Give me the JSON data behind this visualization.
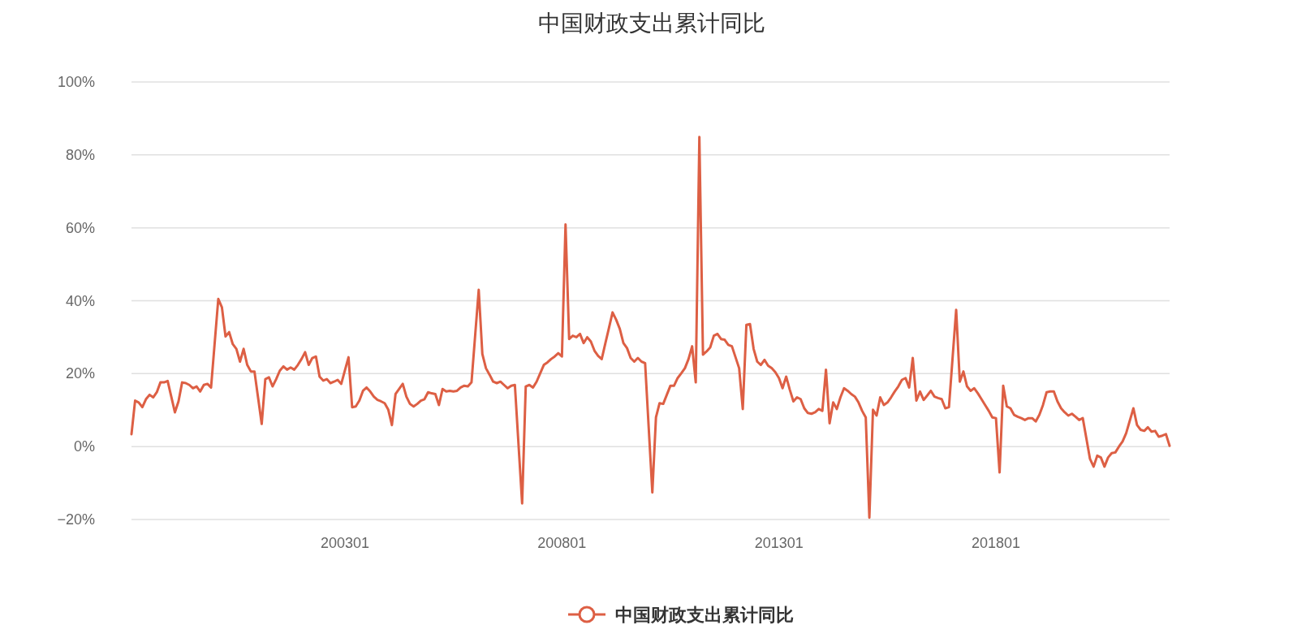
{
  "chart_data": {
    "type": "line",
    "title": "中国财政支出累计同比",
    "categories": [
      null,
      null,
      null,
      null,
      null,
      null,
      null,
      null,
      null,
      null,
      null,
      null,
      null,
      null,
      null,
      null,
      null,
      null,
      null,
      null,
      null,
      null,
      null,
      null,
      null,
      null,
      null,
      null,
      null,
      null,
      null,
      null,
      null,
      null,
      null,
      null,
      null,
      null,
      null,
      null,
      null,
      null,
      null,
      null,
      null,
      null,
      null,
      null,
      null,
      null,
      null,
      null,
      null,
      null,
      null,
      null,
      null,
      null,
      null,
      "200301",
      null,
      null,
      null,
      null,
      null,
      null,
      null,
      null,
      null,
      null,
      null,
      null,
      null,
      null,
      null,
      null,
      null,
      null,
      null,
      null,
      null,
      null,
      null,
      null,
      null,
      null,
      null,
      null,
      null,
      null,
      null,
      null,
      null,
      null,
      null,
      null,
      null,
      null,
      null,
      null,
      null,
      null,
      null,
      null,
      null,
      null,
      null,
      null,
      null,
      null,
      null,
      null,
      null,
      null,
      null,
      null,
      null,
      null,
      null,
      "200801",
      null,
      null,
      null,
      null,
      null,
      null,
      null,
      null,
      null,
      null,
      null,
      null,
      null,
      null,
      null,
      null,
      null,
      null,
      null,
      null,
      null,
      null,
      null,
      null,
      null,
      null,
      null,
      null,
      null,
      null,
      null,
      null,
      null,
      null,
      null,
      null,
      null,
      null,
      null,
      null,
      null,
      null,
      null,
      null,
      null,
      null,
      null,
      null,
      null,
      null,
      null,
      null,
      null,
      null,
      null,
      null,
      null,
      null,
      null,
      "201301",
      null,
      null,
      null,
      null,
      null,
      null,
      null,
      null,
      null,
      null,
      null,
      null,
      null,
      null,
      null,
      null,
      null,
      null,
      null,
      null,
      null,
      null,
      null,
      null,
      null,
      null,
      null,
      null,
      null,
      null,
      null,
      null,
      null,
      null,
      null,
      null,
      null,
      null,
      null,
      null,
      null,
      null,
      null,
      null,
      null,
      null,
      null,
      null,
      null,
      null,
      null,
      null,
      null,
      null,
      null,
      null,
      null,
      null,
      null,
      "201801",
      null,
      null,
      null,
      null,
      null,
      null,
      null,
      null,
      null,
      null,
      null,
      null,
      null,
      null,
      null,
      null,
      null,
      null,
      null,
      null,
      null,
      null,
      null,
      null,
      null,
      null,
      null,
      null,
      null,
      null,
      null,
      null,
      null,
      null,
      null,
      null,
      null,
      null,
      null,
      null,
      null,
      null,
      null,
      null,
      null,
      null,
      null,
      null
    ],
    "series": [
      {
        "name": "中国财政支出累计同比",
        "color": "#dd5f44",
        "values": [
          3.4,
          12.6,
          12.1,
          10.8,
          13,
          14.2,
          13.5,
          14.9,
          17.6,
          17.6,
          18,
          13.7,
          9.4,
          12.4,
          17.6,
          17.4,
          16.9,
          16,
          16.5,
          15.1,
          16.9,
          17.2,
          16.2,
          28.4,
          40.5,
          38.2,
          30.2,
          31.4,
          28.1,
          26.8,
          23.3,
          26.8,
          22.4,
          20.6,
          20.6,
          13.4,
          6.2,
          18.5,
          19,
          16.5,
          18.5,
          20.8,
          22,
          21.1,
          21.7,
          21.1,
          22.4,
          24,
          25.9,
          22.4,
          24.3,
          24.7,
          19.2,
          18.1,
          18.5,
          17.4,
          17.8,
          18.3,
          17.2,
          20.9,
          24.5,
          10.8,
          11,
          12.6,
          15.3,
          16.2,
          15.1,
          13.7,
          12.8,
          12.4,
          11.9,
          10.1,
          5.9,
          14.4,
          15.8,
          17.2,
          13.7,
          11.7,
          11,
          11.7,
          12.6,
          13,
          14.9,
          14.6,
          14.4,
          11.4,
          15.8,
          15.1,
          15.3,
          15.1,
          15.3,
          16.2,
          16.7,
          16.5,
          17.6,
          30.3,
          43,
          25.4,
          21.5,
          19.7,
          17.8,
          17.4,
          17.8,
          16.9,
          16,
          16.7,
          16.9,
          0.6,
          -15.6,
          16.5,
          16.9,
          16.2,
          17.8,
          20.1,
          22.4,
          23.1,
          24,
          24.7,
          25.6,
          24.7,
          60.9,
          29.5,
          30.4,
          30,
          30.9,
          28.4,
          30,
          28.8,
          26.3,
          24.9,
          24,
          28.3,
          32.5,
          36.8,
          34.8,
          32.3,
          28.4,
          27,
          24.3,
          23.3,
          24.3,
          23.3,
          22.9,
          5.1,
          -12.6,
          8,
          11.9,
          11.7,
          14.2,
          16.7,
          16.7,
          18.8,
          20.1,
          21.5,
          24,
          27.5,
          17.6,
          84.9,
          25.2,
          26.1,
          27.2,
          30.4,
          30.9,
          29.5,
          29.3,
          27.9,
          27.5,
          24.5,
          21.5,
          10.3,
          33.4,
          33.6,
          26.8,
          23.3,
          22.4,
          23.8,
          22.2,
          21.5,
          20.4,
          18.8,
          16,
          19.2,
          15.6,
          12.4,
          13.5,
          13,
          10.5,
          9.2,
          9,
          9.4,
          10.3,
          9.8,
          21.1,
          6.4,
          12.1,
          10.3,
          13.5,
          16,
          15.3,
          14.4,
          13.7,
          12.1,
          9.8,
          8,
          -19.5,
          10.1,
          8.5,
          13.5,
          11.4,
          12.1,
          13.5,
          15.1,
          16.5,
          18.3,
          18.8,
          16.2,
          24.3,
          12.6,
          15.1,
          12.8,
          14,
          15.3,
          13.7,
          13.3,
          13,
          10.5,
          10.8,
          24.2,
          37.5,
          17.8,
          20.6,
          16.5,
          15.3,
          16,
          14.6,
          13,
          11.4,
          9.8,
          8,
          7.8,
          -7.1,
          16.7,
          11,
          10.5,
          8.7,
          8.2,
          7.8,
          7.3,
          7.8,
          7.8,
          6.9,
          8.7,
          11.4,
          14.9,
          15.1,
          15.1,
          12.4,
          10.5,
          9.4,
          8.5,
          9,
          8.2,
          7.3,
          7.8,
          2.2,
          -3.4,
          -5.5,
          -2.5,
          -3,
          -5.5,
          -3,
          -1.8,
          -1.6,
          0,
          1.4,
          3.7,
          7.1,
          10.5,
          5.9,
          4.6,
          4.3,
          5.3,
          4.1,
          4.3,
          2.7,
          3,
          3.4,
          0.2
        ]
      }
    ],
    "ylim": [
      -20,
      100
    ],
    "yticks": [
      {
        "value": -20,
        "label": "−20%"
      },
      {
        "value": 0,
        "label": "0%"
      },
      {
        "value": 20,
        "label": "20%"
      },
      {
        "value": 40,
        "label": "40%"
      },
      {
        "value": 60,
        "label": "60%"
      },
      {
        "value": 80,
        "label": "80%"
      },
      {
        "value": 100,
        "label": "100%"
      }
    ],
    "grid": "y",
    "legend": "bottom"
  }
}
